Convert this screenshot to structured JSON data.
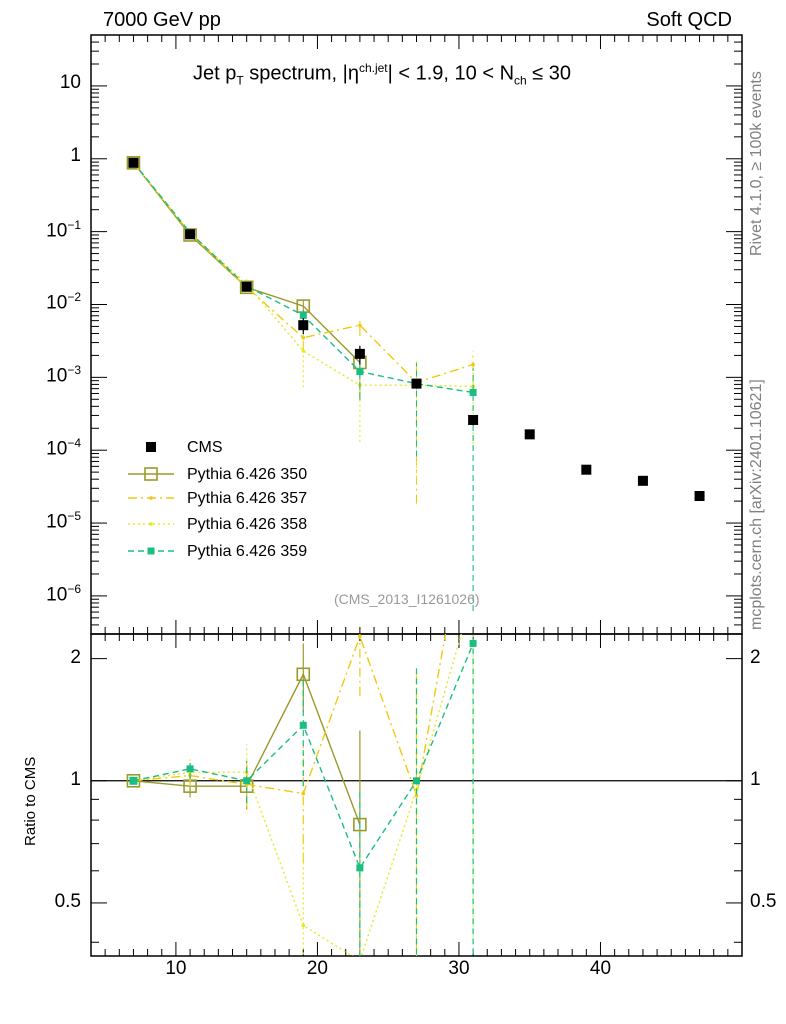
{
  "header": {
    "left": "7000 GeV pp",
    "right": "Soft QCD"
  },
  "side_labels": {
    "rivet": "Rivet 4.1.0, ≥ 100k events",
    "mcplots": "mcplots.cern.ch [arXiv:2401.10621]"
  },
  "ref_label": "(CMS_2013_I1261026)",
  "chart_data": {
    "type": "scatter",
    "title": {
      "p1": "Jet p",
      "s1": "T",
      "p2": " spectrum, |η",
      "s2": "ch.jet",
      "p3": "| < 1.9, 10 < N",
      "s3": "ch",
      "p4": " ≤ 30"
    },
    "xlabel": "",
    "ylabel_main": "",
    "ylabel_ratio": "Ratio to CMS",
    "xlim": [
      4,
      50
    ],
    "ylim_main": [
      3e-07,
      50
    ],
    "yscale_main": "log",
    "ylim_ratio": [
      0.37,
      2.3
    ],
    "yscale_ratio": "log",
    "x_ticks": [
      {
        "v": 10,
        "t": "10"
      },
      {
        "v": 20,
        "t": "20"
      },
      {
        "v": 30,
        "t": "30"
      },
      {
        "v": 40,
        "t": "40"
      }
    ],
    "y_ticks_main": [
      {
        "e": 1,
        "base": "10",
        "exp": ""
      },
      {
        "e": 0,
        "base": "1",
        "exp": ""
      },
      {
        "e": -1,
        "base": "10",
        "exp": "−1"
      },
      {
        "e": -2,
        "base": "10",
        "exp": "−2"
      },
      {
        "e": -3,
        "base": "10",
        "exp": "−3"
      },
      {
        "e": -4,
        "base": "10",
        "exp": "−4"
      },
      {
        "e": -5,
        "base": "10",
        "exp": "−5"
      },
      {
        "e": -6,
        "base": "10",
        "exp": "−6"
      }
    ],
    "y_ticks_ratio": [
      {
        "v": 2,
        "t": "2"
      },
      {
        "v": 1,
        "t": "1"
      },
      {
        "v": 0.5,
        "t": "0.5"
      }
    ],
    "reference": {
      "name": "CMS",
      "color": "#000000",
      "x": [
        7,
        11,
        15,
        19,
        23,
        27,
        31,
        35,
        39,
        43,
        47
      ],
      "y": [
        0.88,
        0.092,
        0.0175,
        0.0052,
        0.0021,
        0.00082,
        0.00026,
        0.000165,
        5.4e-05,
        3.8e-05,
        2.35e-05
      ],
      "yerr": [
        0.05,
        0.005,
        0.0015,
        0.0013,
        0.0006,
        0.00012,
        4e-05,
        1e-05,
        4e-06,
        3e-06,
        2e-06
      ]
    },
    "series": [
      {
        "name": "Pythia 6.426 350",
        "color": "#9a9a2a",
        "style": "solid",
        "marker": "open-square",
        "x": [
          7,
          11,
          15,
          19,
          23
        ],
        "y": [
          0.88,
          0.09,
          0.0172,
          0.0095,
          0.0016
        ],
        "ratio": [
          1.0,
          0.97,
          0.97,
          1.83,
          0.78
        ],
        "ratio_err": [
          0.02,
          0.06,
          0.12,
          0.35,
          0.55
        ]
      },
      {
        "name": "Pythia 6.426 357",
        "color": "#f2c80f",
        "style": "dashdot",
        "marker": "small-dot",
        "x": [
          7,
          11,
          15,
          19,
          23,
          27,
          31
        ],
        "y": [
          0.88,
          0.095,
          0.0172,
          0.0035,
          0.0052,
          0.00085,
          0.0015
        ],
        "ratio": [
          1.0,
          1.03,
          0.98,
          0.93,
          2.27,
          0.92,
          5.5
        ],
        "ratio_err": [
          0.02,
          0.06,
          0.12,
          0.3,
          0.65,
          0.9,
          3.0
        ]
      },
      {
        "name": "Pythia 6.426 358",
        "color": "#e8e820",
        "style": "dotted",
        "marker": "small-dot",
        "x": [
          7,
          11,
          15,
          19,
          23,
          27,
          31
        ],
        "y": [
          0.88,
          0.096,
          0.019,
          0.0023,
          0.00078,
          0.00078,
          0.00075
        ],
        "ratio": [
          1.0,
          1.05,
          1.05,
          0.44,
          0.36,
          0.95,
          2.9
        ],
        "ratio_err": [
          0.02,
          0.08,
          0.18,
          0.3,
          0.3,
          0.9,
          2.5
        ]
      },
      {
        "name": "Pythia 6.426 359",
        "color": "#1abf7f",
        "style": "dashed",
        "marker": "filled-square",
        "x": [
          7,
          11,
          15,
          19,
          23,
          27,
          31
        ],
        "y": [
          0.89,
          0.097,
          0.0178,
          0.0071,
          0.0012,
          0.00082,
          0.00062
        ],
        "ratio": [
          1.0,
          1.07,
          1.0,
          1.37,
          0.61,
          1.0,
          2.18
        ],
        "ratio_err": [
          0.02,
          0.06,
          0.12,
          0.4,
          0.35,
          0.9,
          2.5
        ]
      }
    ],
    "legend_position": "lower-left"
  }
}
